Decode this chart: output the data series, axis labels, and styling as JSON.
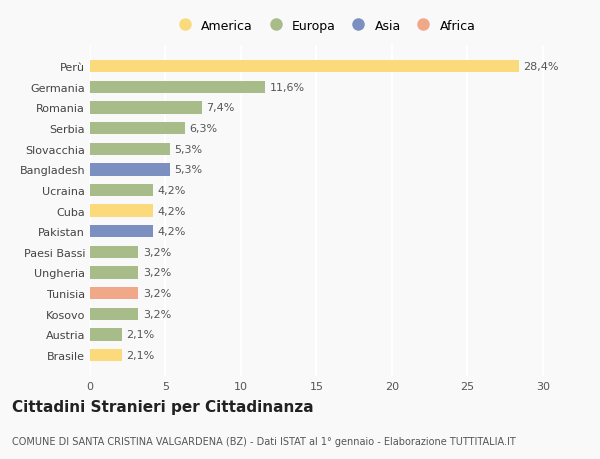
{
  "countries": [
    "Perù",
    "Germania",
    "Romania",
    "Serbia",
    "Slovacchia",
    "Bangladesh",
    "Ucraina",
    "Cuba",
    "Pakistan",
    "Paesi Bassi",
    "Ungheria",
    "Tunisia",
    "Kosovo",
    "Austria",
    "Brasile"
  ],
  "values": [
    28.4,
    11.6,
    7.4,
    6.3,
    5.3,
    5.3,
    4.2,
    4.2,
    4.2,
    3.2,
    3.2,
    3.2,
    3.2,
    2.1,
    2.1
  ],
  "labels": [
    "28,4%",
    "11,6%",
    "7,4%",
    "6,3%",
    "5,3%",
    "5,3%",
    "4,2%",
    "4,2%",
    "4,2%",
    "3,2%",
    "3,2%",
    "3,2%",
    "3,2%",
    "2,1%",
    "2,1%"
  ],
  "colors": [
    "#FADA7A",
    "#A8BC8A",
    "#A8BC8A",
    "#A8BC8A",
    "#A8BC8A",
    "#7B8FC0",
    "#A8BC8A",
    "#FADA7A",
    "#7B8FC0",
    "#A8BC8A",
    "#A8BC8A",
    "#F0A888",
    "#A8BC8A",
    "#A8BC8A",
    "#FADA7A"
  ],
  "legend_labels": [
    "America",
    "Europa",
    "Asia",
    "Africa"
  ],
  "legend_colors": [
    "#FADA7A",
    "#A8BC8A",
    "#7B8FC0",
    "#F0A888"
  ],
  "title": "Cittadini Stranieri per Cittadinanza",
  "subtitle": "COMUNE DI SANTA CRISTINA VALGARDENA (BZ) - Dati ISTAT al 1° gennaio - Elaborazione TUTTITALIA.IT",
  "xlim": [
    0,
    31
  ],
  "xticks": [
    0,
    5,
    10,
    15,
    20,
    25,
    30
  ],
  "background_color": "#f9f9f9",
  "bar_height": 0.6,
  "label_fontsize": 8,
  "tick_fontsize": 8,
  "ytick_fontsize": 8,
  "title_fontsize": 11,
  "subtitle_fontsize": 7
}
